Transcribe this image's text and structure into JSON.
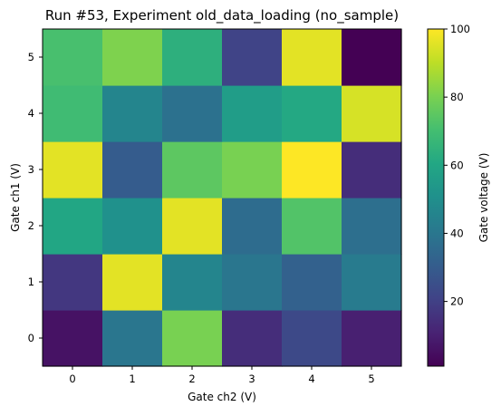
{
  "chart_data": {
    "type": "heatmap",
    "title": "Run #53, Experiment old_data_loading (no_sample)",
    "xlabel": "Gate ch2 (V)",
    "ylabel": "Gate ch1 (V)",
    "x_ticks": [
      "0",
      "1",
      "2",
      "3",
      "4",
      "5"
    ],
    "y_ticks": [
      "0",
      "1",
      "2",
      "3",
      "4",
      "5"
    ],
    "xlim": [
      -0.5,
      5.5
    ],
    "ylim": [
      -0.5,
      5.5
    ],
    "colormap": "viridis",
    "values": [
      [
        6,
        40,
        80,
        14,
        23,
        10
      ],
      [
        17,
        96,
        46,
        40,
        32,
        42
      ],
      [
        60,
        51,
        96,
        36,
        73,
        37
      ],
      [
        96,
        30,
        75,
        80,
        100,
        14
      ],
      [
        69,
        46,
        38,
        56,
        61,
        94
      ],
      [
        71,
        81,
        64,
        21,
        96,
        1
      ]
    ],
    "colorbar": {
      "label": "Gate voltage (V)",
      "range": [
        1,
        100
      ],
      "ticks": [
        "20",
        "40",
        "60",
        "80",
        "100"
      ]
    }
  }
}
